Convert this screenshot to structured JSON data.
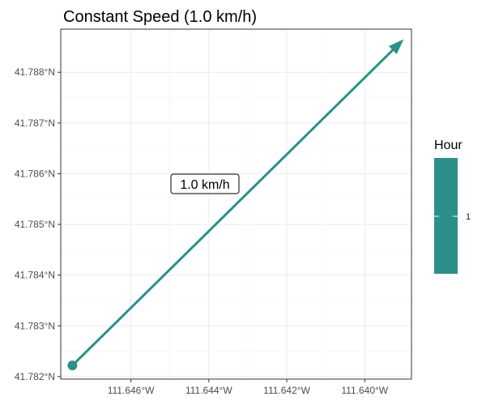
{
  "chart_data": {
    "type": "line",
    "title": "Constant Speed (1.0 km/h)",
    "xlabel": "",
    "ylabel": "",
    "xlim": [
      -111.6478,
      -111.6388
    ],
    "ylim": [
      -41.78195,
      -41.78885
    ],
    "x_ticks": [
      -111.646,
      -111.644,
      -111.642,
      -111.64
    ],
    "x_tick_labels": [
      "111.646°W",
      "111.644°W",
      "111.642°W",
      "111.640°W"
    ],
    "y_ticks": [
      -41.782,
      -41.783,
      -41.784,
      -41.785,
      -41.786,
      -41.787,
      -41.788
    ],
    "y_tick_labels": [
      "41.782°N",
      "41.783°N",
      "41.784°N",
      "41.785°N",
      "41.786°N",
      "41.787°N",
      "41.788°N"
    ],
    "grid": true,
    "series": [
      {
        "x": [
          -111.6475,
          -111.639
        ],
        "y": [
          -41.78222,
          -41.78865
        ],
        "color": "#2a9188",
        "start_marker": "circle",
        "end_marker": "arrow"
      }
    ],
    "annotations": [
      {
        "text": "1.0 km/h",
        "x": -111.6441,
        "y": -41.7858
      }
    ],
    "legend": {
      "title": "Hour",
      "type": "colorbar",
      "color": "#2a9188",
      "ticks": [
        "1"
      ],
      "position": "right"
    }
  }
}
